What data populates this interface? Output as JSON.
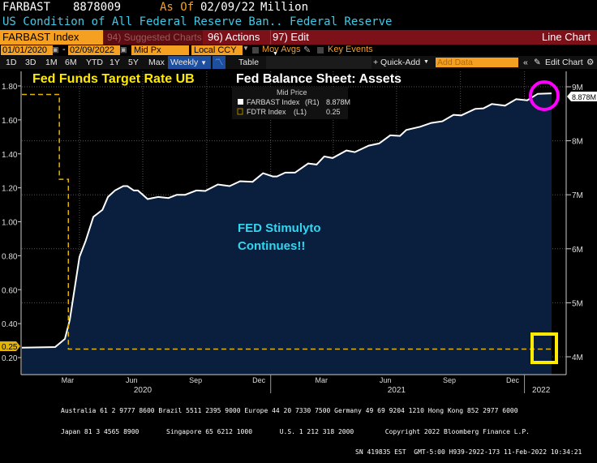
{
  "header": {
    "ticker": "FARBAST",
    "value": "8878009",
    "as_of_label": "As Of",
    "as_of_date": "02/09/22",
    "unit": "Million",
    "description": "US Condition of All Federal Reserve Ban.. Federal Reserve"
  },
  "toolbar": {
    "security": "FARBAST Index",
    "suggested": "94) Suggested Charts",
    "actions": "96) Actions",
    "edit": "97) Edit",
    "chart_type": "Line Chart",
    "start_date": "01/01/2020",
    "end_date": "02/09/2022",
    "price_type": "Mid Px",
    "currency": "Local CCY",
    "mov_avgs": "Mov Avgs",
    "key_events": "Key Events",
    "periods": [
      "1D",
      "3D",
      "1M",
      "6M",
      "YTD",
      "1Y",
      "5Y",
      "Max"
    ],
    "frequency": "Weekly",
    "table": "Table",
    "quick_add": "+ Quick-Add",
    "add_data_placeholder": "Add Data",
    "edit_chart": "Edit Chart"
  },
  "colors": {
    "accent_orange": "#f5a021",
    "toolbar_red": "#7c111a",
    "area_fill": "#0a1f3d",
    "balance_line": "#ffffff",
    "fdtr_line": "#e5b400",
    "highlight_circle": "#ff00ff",
    "highlight_box": "#ffea00",
    "annotation_cyan": "#33d6f0"
  },
  "chart_data": {
    "type": "line",
    "annotations": {
      "left_title": "Fed Funds Target Rate UB",
      "right_title": "Fed Balance Sheet: Assets",
      "note_line1": "FED Stimulyto",
      "note_line2": "Continues!!"
    },
    "legend": {
      "title": "Mid Price",
      "placement": "top-center",
      "entries": [
        {
          "label": "FARBAST Index",
          "axis": "(R1)",
          "last": "8.878M"
        },
        {
          "label": "FDTR Index",
          "axis": "(L1)",
          "last": "0.25"
        }
      ]
    },
    "x_range": [
      "2020-01-01",
      "2022-02-09"
    ],
    "x_month_labels": [
      "Mar",
      "Jun",
      "Sep",
      "Dec",
      "Mar",
      "Jun",
      "Sep",
      "Dec"
    ],
    "x_month_dates": [
      "2020-03-15",
      "2020-06-15",
      "2020-09-15",
      "2020-12-15",
      "2021-03-15",
      "2021-06-15",
      "2021-09-15",
      "2021-12-15"
    ],
    "x_year_labels": [
      "2020",
      "2021",
      "2022"
    ],
    "left_axis": {
      "range": [
        0.2,
        1.8
      ],
      "ticks": [
        "0.20",
        "0.40",
        "0.60",
        "0.80",
        "1.00",
        "1.20",
        "1.40",
        "1.60",
        "1.80"
      ],
      "last_label": "0.25"
    },
    "right_axis": {
      "range": [
        4,
        9
      ],
      "unit": "M",
      "ticks": [
        "4M",
        "5M",
        "6M",
        "7M",
        "8M",
        "9M"
      ],
      "last_label": "8.878M"
    },
    "grid": true,
    "series": [
      {
        "name": "FARBAST Index",
        "axis": "right",
        "points": [
          [
            "2020-01-01",
            4.17
          ],
          [
            "2020-02-26",
            4.18
          ],
          [
            "2020-03-11",
            4.33
          ],
          [
            "2020-03-18",
            4.68
          ],
          [
            "2020-04-01",
            5.85
          ],
          [
            "2020-04-10",
            6.15
          ],
          [
            "2020-04-21",
            6.59
          ],
          [
            "2020-05-04",
            6.72
          ],
          [
            "2020-05-12",
            6.96
          ],
          [
            "2020-05-22",
            7.08
          ],
          [
            "2020-06-03",
            7.16
          ],
          [
            "2020-06-09",
            7.16
          ],
          [
            "2020-06-18",
            7.08
          ],
          [
            "2020-06-24",
            7.08
          ],
          [
            "2020-07-08",
            6.92
          ],
          [
            "2020-07-23",
            6.96
          ],
          [
            "2020-08-07",
            6.94
          ],
          [
            "2020-08-19",
            7.0
          ],
          [
            "2020-08-31",
            7.0
          ],
          [
            "2020-09-16",
            7.08
          ],
          [
            "2020-09-29",
            7.07
          ],
          [
            "2020-10-17",
            7.19
          ],
          [
            "2020-11-03",
            7.16
          ],
          [
            "2020-11-18",
            7.25
          ],
          [
            "2020-12-06",
            7.24
          ],
          [
            "2020-12-21",
            7.4
          ],
          [
            "2021-01-04",
            7.34
          ],
          [
            "2021-01-10",
            7.34
          ],
          [
            "2021-01-22",
            7.41
          ],
          [
            "2021-02-05",
            7.41
          ],
          [
            "2021-02-24",
            7.58
          ],
          [
            "2021-03-08",
            7.56
          ],
          [
            "2021-03-19",
            7.71
          ],
          [
            "2021-03-31",
            7.68
          ],
          [
            "2021-04-20",
            7.82
          ],
          [
            "2021-05-02",
            7.79
          ],
          [
            "2021-05-22",
            7.91
          ],
          [
            "2021-06-06",
            7.95
          ],
          [
            "2021-06-22",
            8.1
          ],
          [
            "2021-07-06",
            8.09
          ],
          [
            "2021-07-15",
            8.2
          ],
          [
            "2021-08-04",
            8.26
          ],
          [
            "2021-08-20",
            8.33
          ],
          [
            "2021-09-05",
            8.36
          ],
          [
            "2021-09-21",
            8.48
          ],
          [
            "2021-10-02",
            8.47
          ],
          [
            "2021-10-22",
            8.59
          ],
          [
            "2021-11-03",
            8.6
          ],
          [
            "2021-11-15",
            8.68
          ],
          [
            "2021-12-04",
            8.65
          ],
          [
            "2021-12-20",
            8.77
          ],
          [
            "2022-01-05",
            8.75
          ],
          [
            "2022-01-20",
            8.87
          ],
          [
            "2022-02-09",
            8.878
          ]
        ]
      },
      {
        "name": "FDTR Index",
        "axis": "left",
        "step": true,
        "points": [
          [
            "2020-01-01",
            1.75
          ],
          [
            "2020-03-03",
            1.25
          ],
          [
            "2020-03-16",
            0.25
          ],
          [
            "2022-02-09",
            0.25
          ]
        ]
      }
    ]
  },
  "footer": {
    "line1": "Australia 61 2 9777 8600 Brazil 5511 2395 9000 Europe 44 20 7330 7500 Germany 49 69 9204 1210 Hong Kong 852 2977 6000",
    "line2": "Japan 81 3 4565 8900       Singapore 65 6212 1000       U.S. 1 212 318 2000        Copyright 2022 Bloomberg Finance L.P.",
    "line3": "SN 419835 EST  GMT-5:00 H939-2922-173 11-Feb-2022 10:34:21"
  }
}
